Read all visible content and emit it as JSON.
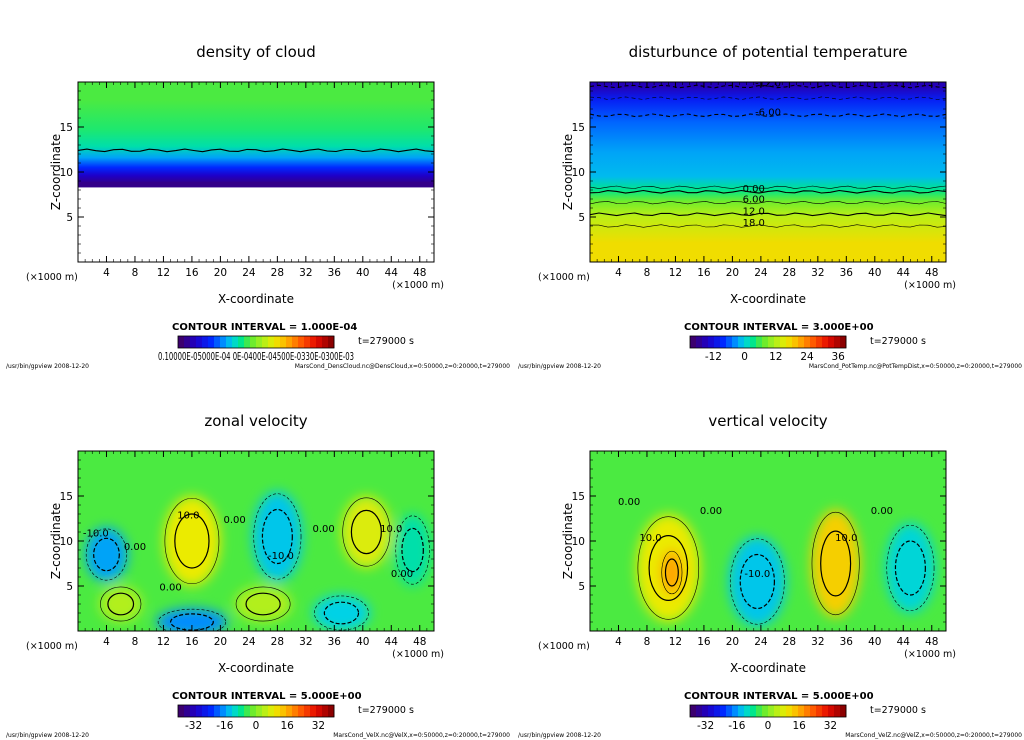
{
  "panels": [
    {
      "title": "density of cloud",
      "xlabel": "X-coordinate",
      "ylabel": "Z-coordinate",
      "x_units": "(×1000 m)",
      "y_units": "(×1000 m)",
      "contour_interval": "CONTOUR INTERVAL = 1.000E-04",
      "time": "t=279000 s",
      "colorbar_label": "0.10000E-05000E-04 0E-0400E-04500E-0330E-0300E-03",
      "footer_left": "/usr/bin/gpview   2008-12-20",
      "footer_right": "MarsCond_DensCloud.nc@DensCloud,x=0:50000,z=0:20000,t=279000"
    },
    {
      "title": "disturbunce of potential temperature",
      "xlabel": "X-coordinate",
      "ylabel": "Z-coordinate",
      "x_units": "(×1000 m)",
      "y_units": "(×1000 m)",
      "contour_interval": "CONTOUR INTERVAL = 3.000E+00",
      "time": "t=279000 s",
      "footer_left": "/usr/bin/gpview   2008-12-20",
      "footer_right": "MarsCond_PotTemp.nc@PotTempDist,x=0:50000,z=0:20000,t=279000"
    },
    {
      "title": "zonal velocity",
      "xlabel": "X-coordinate",
      "ylabel": "Z-coordinate",
      "x_units": "(×1000 m)",
      "y_units": "(×1000 m)",
      "contour_interval": "CONTOUR INTERVAL = 5.000E+00",
      "time": "t=279000 s",
      "footer_left": "/usr/bin/gpview   2008-12-20",
      "footer_right": "MarsCond_VelX.nc@VelX,x=0:50000,z=0:20000,t=279000"
    },
    {
      "title": "vertical velocity",
      "xlabel": "X-coordinate",
      "ylabel": "Z-coordinate",
      "x_units": "(×1000 m)",
      "y_units": "(×1000 m)",
      "contour_interval": "CONTOUR INTERVAL = 5.000E+00",
      "time": "t=279000 s",
      "footer_left": "/usr/bin/gpview   2008-12-20",
      "footer_right": "MarsCond_VelZ.nc@VelZ,x=0:50000,z=0:20000,t=279000"
    }
  ],
  "chart_data": [
    {
      "type": "heatmap",
      "title": "density of cloud",
      "xlabel": "X-coordinate",
      "ylabel": "Z-coordinate",
      "xlim": [
        0,
        50
      ],
      "ylim": [
        0,
        20
      ],
      "x_ticks": [
        4,
        8,
        12,
        16,
        20,
        24,
        28,
        32,
        36,
        40,
        44,
        48
      ],
      "y_ticks": [
        5,
        10,
        15
      ],
      "contour_labels": [],
      "layers": [
        {
          "z0": 16,
          "z1": 20,
          "v": 0.45
        },
        {
          "z0": 13.5,
          "z1": 16,
          "v": 0.42
        },
        {
          "z0": 12.2,
          "z1": 13.5,
          "v": 0.38
        },
        {
          "z0": 11,
          "z1": 12.2,
          "v": 0.3
        },
        {
          "z0": 10,
          "z1": 11,
          "v": 0.2
        },
        {
          "z0": 9.2,
          "z1": 10,
          "v": 0.1
        },
        {
          "z0": 8.3,
          "z1": 9.2,
          "v": 0.03
        }
      ],
      "contour_lines_z": [
        12.4
      ],
      "white_below": 8.3
    },
    {
      "type": "heatmap",
      "title": "disturbunce of potential temperature",
      "xlabel": "X-coordinate",
      "ylabel": "Z-coordinate",
      "xlim": [
        0,
        50
      ],
      "ylim": [
        0,
        20
      ],
      "x_ticks": [
        4,
        8,
        12,
        16,
        20,
        24,
        28,
        32,
        36,
        40,
        44,
        48
      ],
      "y_ticks": [
        5,
        10,
        15
      ],
      "colorbar_ticks": [
        -12,
        0,
        12,
        24,
        36
      ],
      "colorbar_range": [
        -21,
        39
      ],
      "contour_labels": [
        {
          "text": "-12.0",
          "x": 25,
          "z": 19.5
        },
        {
          "text": "-6.00",
          "x": 25,
          "z": 16.3
        },
        {
          "text": "0.00",
          "x": 23,
          "z": 7.8
        },
        {
          "text": "6.00",
          "x": 23,
          "z": 6.6
        },
        {
          "text": "12.0",
          "x": 23,
          "z": 5.3
        },
        {
          "text": "18.0",
          "x": 23,
          "z": 4.0
        }
      ],
      "layers": [
        {
          "z0": 19,
          "z1": 20,
          "v": 0.08
        },
        {
          "z0": 17,
          "z1": 19,
          "v": 0.18
        },
        {
          "z0": 14,
          "z1": 17,
          "v": 0.25
        },
        {
          "z0": 10.5,
          "z1": 14,
          "v": 0.3
        },
        {
          "z0": 8.5,
          "z1": 10.5,
          "v": 0.32
        },
        {
          "z0": 7.5,
          "z1": 8.5,
          "v": 0.4
        },
        {
          "z0": 6,
          "z1": 7.5,
          "v": 0.48
        },
        {
          "z0": 4.2,
          "z1": 6,
          "v": 0.56
        },
        {
          "z0": 0,
          "z1": 4.2,
          "v": 0.64
        }
      ],
      "contour_lines_z": [
        19.5,
        18.2,
        16.3,
        8.3,
        7.8,
        6.6,
        5.3,
        4.0
      ]
    },
    {
      "type": "heatmap",
      "title": "zonal velocity",
      "xlabel": "X-coordinate",
      "ylabel": "Z-coordinate",
      "xlim": [
        0,
        50
      ],
      "ylim": [
        0,
        20
      ],
      "x_ticks": [
        4,
        8,
        12,
        16,
        20,
        24,
        28,
        32,
        36,
        40,
        44,
        48
      ],
      "y_ticks": [
        5,
        10,
        15
      ],
      "colorbar_ticks": [
        -32,
        -16,
        0,
        16,
        32
      ],
      "colorbar_range": [
        -40,
        40
      ],
      "background_value": 0.45,
      "blobs": [
        {
          "x": 4,
          "z": 8.5,
          "rx": 3,
          "rz": 3,
          "v": 0.3
        },
        {
          "x": 16,
          "z": 10,
          "rx": 4,
          "rz": 5,
          "v": 0.62
        },
        {
          "x": 28,
          "z": 10.5,
          "rx": 3.5,
          "rz": 5,
          "v": 0.33
        },
        {
          "x": 40.5,
          "z": 11,
          "rx": 3.5,
          "rz": 4,
          "v": 0.6
        },
        {
          "x": 47,
          "z": 9,
          "rx": 2.5,
          "rz": 4,
          "v": 0.38
        },
        {
          "x": 16,
          "z": 1,
          "rx": 5,
          "rz": 1.5,
          "v": 0.28
        },
        {
          "x": 37,
          "z": 2,
          "rx": 4,
          "rz": 2,
          "v": 0.34
        },
        {
          "x": 6,
          "z": 3,
          "rx": 3,
          "rz": 2,
          "v": 0.55
        },
        {
          "x": 26,
          "z": 3,
          "rx": 4,
          "rz": 2,
          "v": 0.55
        }
      ],
      "contour_labels": [
        {
          "text": "10.0",
          "x": 15.5,
          "z": 12.5
        },
        {
          "text": "-10.0",
          "x": 2.5,
          "z": 10.5
        },
        {
          "text": "0.00",
          "x": 8,
          "z": 9
        },
        {
          "text": "0.00",
          "x": 13,
          "z": 4.5
        },
        {
          "text": "0.00",
          "x": 22,
          "z": 12
        },
        {
          "text": "-10.0",
          "x": 28.5,
          "z": 8
        },
        {
          "text": "0.00",
          "x": 34.5,
          "z": 11
        },
        {
          "text": "10.0",
          "x": 44,
          "z": 11
        },
        {
          "text": "0.00",
          "x": 45.5,
          "z": 6
        }
      ]
    },
    {
      "type": "heatmap",
      "title": "vertical velocity",
      "xlabel": "X-coordinate",
      "ylabel": "Z-coordinate",
      "xlim": [
        0,
        50
      ],
      "ylim": [
        0,
        20
      ],
      "x_ticks": [
        4,
        8,
        12,
        16,
        20,
        24,
        28,
        32,
        36,
        40,
        44,
        48
      ],
      "y_ticks": [
        5,
        10,
        15
      ],
      "colorbar_ticks": [
        -32,
        -16,
        0,
        16,
        32
      ],
      "colorbar_range": [
        -40,
        40
      ],
      "background_value": 0.45,
      "blobs": [
        {
          "x": 11,
          "z": 7,
          "rx": 4.5,
          "rz": 6,
          "v": 0.62
        },
        {
          "x": 11.5,
          "z": 6.5,
          "rx": 1.5,
          "rz": 2.5,
          "v": 0.72
        },
        {
          "x": 23.5,
          "z": 5.5,
          "rx": 4,
          "rz": 5,
          "v": 0.33
        },
        {
          "x": 34.5,
          "z": 7.5,
          "rx": 3.5,
          "rz": 6,
          "v": 0.66
        },
        {
          "x": 45,
          "z": 7,
          "rx": 3.5,
          "rz": 5,
          "v": 0.35
        }
      ],
      "contour_labels": [
        {
          "text": "0.00",
          "x": 5.5,
          "z": 14
        },
        {
          "text": "10.0",
          "x": 8.5,
          "z": 10
        },
        {
          "text": "0.00",
          "x": 17,
          "z": 13
        },
        {
          "text": "-10.0",
          "x": 23.5,
          "z": 6
        },
        {
          "text": "10.0",
          "x": 36,
          "z": 10
        },
        {
          "text": "0.00",
          "x": 41,
          "z": 13
        }
      ]
    }
  ]
}
